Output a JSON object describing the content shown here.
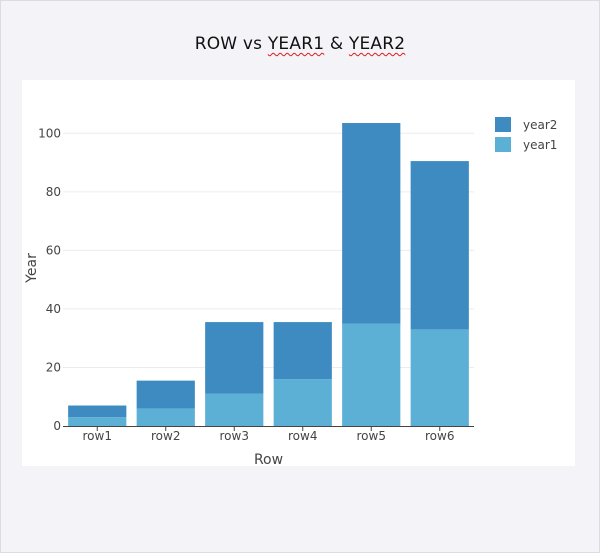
{
  "title": {
    "prefix": "ROW vs ",
    "word1": "YEAR1",
    "connector": " & ",
    "word2": "YEAR2"
  },
  "chart_data": {
    "type": "bar",
    "stacked": true,
    "title": "ROW vs YEAR1 & YEAR2",
    "xlabel": "Row",
    "ylabel": "Year",
    "categories": [
      "row1",
      "row2",
      "row3",
      "row4",
      "row5",
      "row6"
    ],
    "series": [
      {
        "name": "year1",
        "color": "#5cb0d5",
        "values": [
          3,
          6,
          11,
          16,
          35,
          33
        ]
      },
      {
        "name": "year2",
        "color": "#3e8bc1",
        "values": [
          4,
          9.5,
          24.5,
          19.5,
          68.5,
          57.5
        ]
      }
    ],
    "ylim": [
      0,
      110
    ],
    "yticks": [
      0,
      20,
      40,
      60,
      80,
      100
    ],
    "grid": true,
    "legend": {
      "position": "top-right",
      "order": [
        "year2",
        "year1"
      ]
    }
  }
}
